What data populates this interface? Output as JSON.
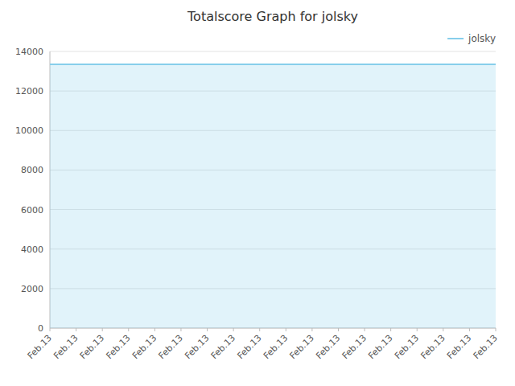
{
  "chart_data": {
    "type": "area",
    "title": "Totalscore Graph for jolsky",
    "categories": [
      "Feb.13",
      "Feb.13",
      "Feb.13",
      "Feb.13",
      "Feb.13",
      "Feb.13",
      "Feb.13",
      "Feb.13",
      "Feb.13",
      "Feb.13",
      "Feb.13",
      "Feb.13",
      "Feb.13",
      "Feb.13",
      "Feb.13",
      "Feb.13",
      "Feb.13",
      "Feb.13"
    ],
    "series": [
      {
        "name": "jolsky",
        "color": "#87CEEB",
        "values": [
          13350,
          13350,
          13350,
          13350,
          13350,
          13350,
          13350,
          13350,
          13350,
          13350,
          13350,
          13350,
          13350,
          13350,
          13350,
          13350,
          13350,
          13350
        ]
      }
    ],
    "ylim": [
      0,
      14000
    ],
    "yticks": [
      0,
      2000,
      4000,
      6000,
      8000,
      10000,
      12000,
      14000
    ],
    "grid": true,
    "legend": "top-right"
  }
}
